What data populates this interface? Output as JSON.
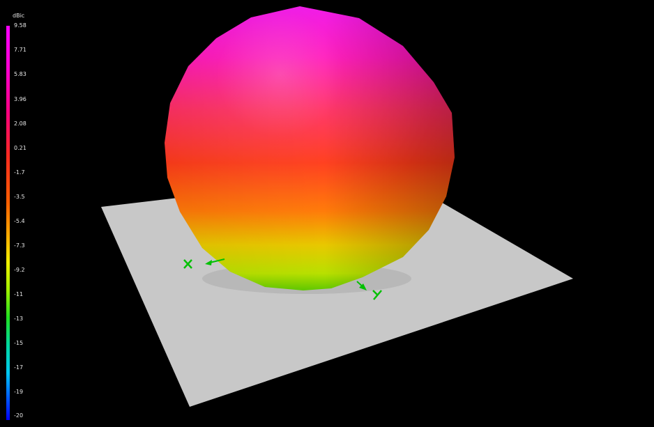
{
  "legend": {
    "unit": "dBic",
    "ticks": [
      "9.58",
      "7.71",
      "5.83",
      "3.96",
      "2.08",
      "0.21",
      "-1.7",
      "-3.5",
      "-5.4",
      "-7.3",
      "-9.2",
      "-11",
      "-13",
      "-15",
      "-17",
      "-19",
      "-20"
    ]
  },
  "scene": {
    "background_color": "#000000",
    "ground_plane_color": "#c8c8c8",
    "axis_color": "#00c000",
    "axes": [
      {
        "name": "X",
        "label": "X"
      },
      {
        "name": "Y",
        "label": "Y"
      }
    ]
  }
}
